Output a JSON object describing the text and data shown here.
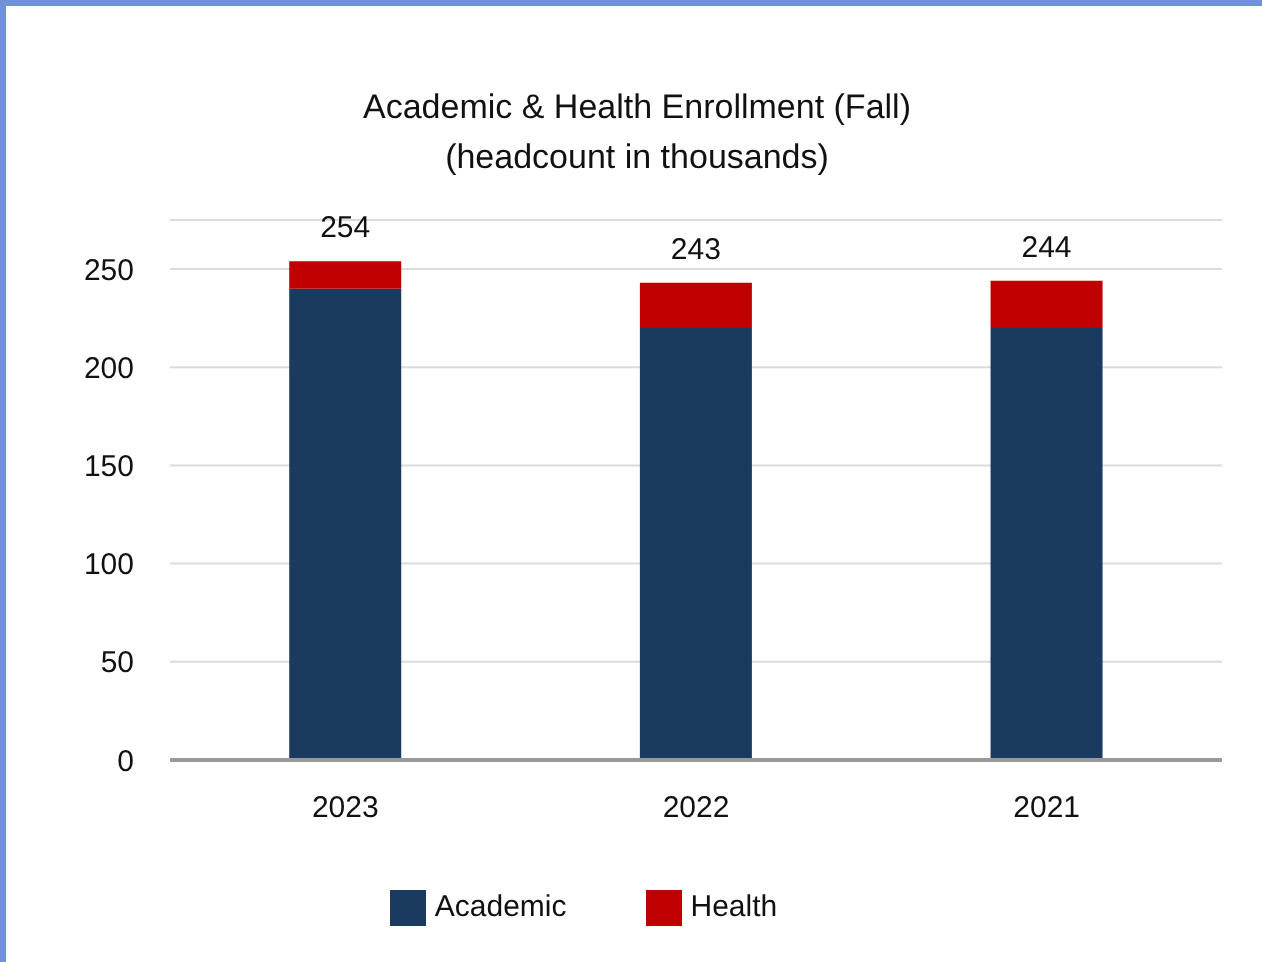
{
  "chart_data": {
    "type": "bar",
    "title": "Academic & Health Enrollment (Fall)",
    "subtitle": "(headcount in thousands)",
    "categories": [
      "2023",
      "2022",
      "2021"
    ],
    "stacked": true,
    "series": [
      {
        "name": "Academic",
        "color": "#1a3a5f",
        "values": [
          240,
          220,
          220
        ]
      },
      {
        "name": "Health",
        "color": "#c00000",
        "values": [
          14,
          23,
          24
        ]
      }
    ],
    "totals": [
      "254",
      "243",
      "244"
    ],
    "ylim": [
      0,
      275
    ],
    "yticks": [
      0,
      50,
      100,
      150,
      200,
      250
    ],
    "grid": "y",
    "legend": "bottom"
  }
}
